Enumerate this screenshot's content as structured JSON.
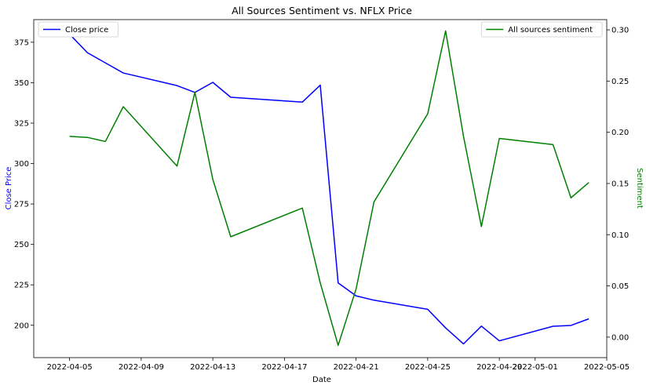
{
  "chart_data": {
    "type": "line",
    "title": "All Sources Sentiment vs. NFLX Price",
    "xlabel": "Date",
    "ylabel_left": "Close Price",
    "ylabel_right": "Sentiment",
    "left_axis_color": "#0000ff",
    "right_axis_color": "#008000",
    "x_ticks": [
      "2022-04-05",
      "2022-04-09",
      "2022-04-13",
      "2022-04-17",
      "2022-04-21",
      "2022-04-25",
      "2022-04-29",
      "2022-05-01",
      "2022-05-05"
    ],
    "xlim": [
      "2022-04-03",
      "2022-05-05"
    ],
    "left_ylim": [
      180,
      389
    ],
    "left_ticks": [
      200,
      225,
      250,
      275,
      300,
      325,
      350,
      375
    ],
    "right_ylim": [
      -0.02,
      0.31
    ],
    "right_ticks": [
      "0.00",
      "0.05",
      "0.10",
      "0.15",
      "0.20",
      "0.25",
      "0.30"
    ],
    "series": [
      {
        "name": "Close price",
        "axis": "left",
        "color": "#0000ff",
        "legend_position": "upper-left",
        "points": [
          [
            "2022-04-05",
            380.0
          ],
          [
            "2022-04-06",
            368.5
          ],
          [
            "2022-04-08",
            356.0
          ],
          [
            "2022-04-11",
            348.2
          ],
          [
            "2022-04-12",
            344.0
          ],
          [
            "2022-04-13",
            350.2
          ],
          [
            "2022-04-14",
            341.0
          ],
          [
            "2022-04-18",
            338.0
          ],
          [
            "2022-04-19",
            348.5
          ],
          [
            "2022-04-20",
            226.2
          ],
          [
            "2022-04-21",
            218.2
          ],
          [
            "2022-04-22",
            215.5
          ],
          [
            "2022-04-25",
            209.9
          ],
          [
            "2022-04-26",
            198.4
          ],
          [
            "2022-04-27",
            188.5
          ],
          [
            "2022-04-28",
            199.5
          ],
          [
            "2022-04-29",
            190.4
          ],
          [
            "2022-05-02",
            199.4
          ],
          [
            "2022-05-03",
            199.9
          ],
          [
            "2022-05-04",
            204.0
          ]
        ]
      },
      {
        "name": "All sources sentiment",
        "axis": "right",
        "color": "#008000",
        "legend_position": "upper-right",
        "points": [
          [
            "2022-04-05",
            0.196
          ],
          [
            "2022-04-06",
            0.195
          ],
          [
            "2022-04-07",
            0.191
          ],
          [
            "2022-04-08",
            0.225
          ],
          [
            "2022-04-11",
            0.167
          ],
          [
            "2022-04-12",
            0.239
          ],
          [
            "2022-04-13",
            0.154
          ],
          [
            "2022-04-14",
            0.098
          ],
          [
            "2022-04-18",
            0.126
          ],
          [
            "2022-04-19",
            0.053
          ],
          [
            "2022-04-20",
            -0.008
          ],
          [
            "2022-04-21",
            0.047
          ],
          [
            "2022-04-22",
            0.132
          ],
          [
            "2022-04-25",
            0.218
          ],
          [
            "2022-04-26",
            0.299
          ],
          [
            "2022-04-27",
            0.196
          ],
          [
            "2022-04-28",
            0.108
          ],
          [
            "2022-04-29",
            0.194
          ],
          [
            "2022-05-02",
            0.188
          ],
          [
            "2022-05-03",
            0.136
          ],
          [
            "2022-05-04",
            0.151
          ]
        ]
      }
    ]
  }
}
